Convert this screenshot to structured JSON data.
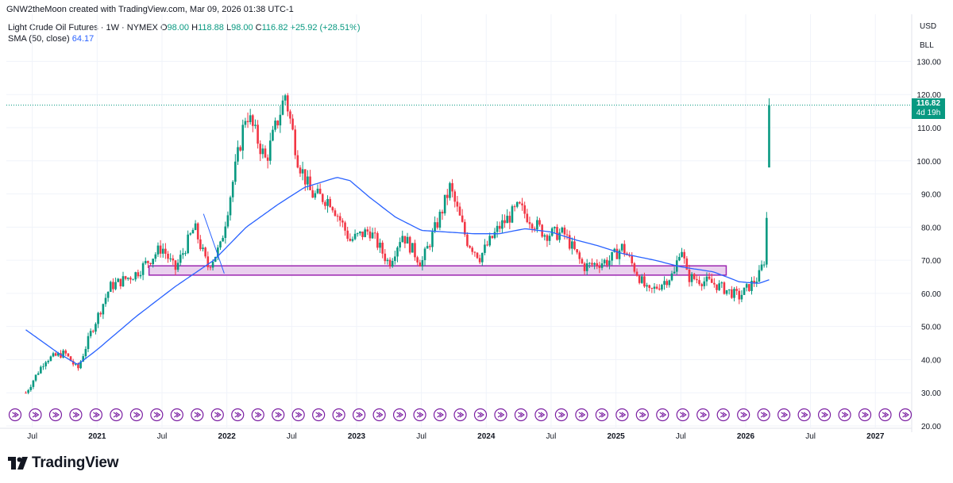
{
  "header": {
    "attribution": "GNW2theMoon created with TradingView.com, Mar 09, 2026 01:38 UTC-1"
  },
  "legend": {
    "instrument": "Light Crude Oil Futures · 1W · NYMEX",
    "o_label": "O",
    "o_value": "98.00",
    "h_label": "H",
    "h_value": "118.88",
    "l_label": "L",
    "l_value": "98.00",
    "c_label": "C",
    "c_value": "116.82",
    "change": "+25.92 (+28.51%)",
    "sma_label": "SMA (50, close)",
    "sma_value": "64.17"
  },
  "scale": {
    "currency": "USD",
    "unit": "BLL"
  },
  "price_tag": {
    "price": "116.82",
    "countdown": "4d 19h"
  },
  "branding": {
    "name": "TradingView"
  },
  "colors": {
    "up": "#089981",
    "down": "#f23645",
    "sma": "#2962ff",
    "zone_fill": "#e1bee7",
    "zone_border": "#9c27b0",
    "event_marker": "#7b1fa2"
  },
  "chart_data": {
    "type": "candlestick",
    "x_ticks": [
      "Jul",
      "2021",
      "Jul",
      "2022",
      "Jul",
      "2023",
      "Jul",
      "2024",
      "Jul",
      "2025",
      "Jul",
      "2026",
      "Jul",
      "2027"
    ],
    "y_ticks": [
      "20.00",
      "30.00",
      "40.00",
      "50.00",
      "60.00",
      "70.00",
      "80.00",
      "90.00",
      "100.00",
      "110.00",
      "120.00",
      "130.00"
    ],
    "ylim": [
      20,
      132
    ],
    "current_price": 116.82,
    "anchors": [
      [
        2020.45,
        30
      ],
      [
        2020.6,
        40
      ],
      [
        2020.75,
        42
      ],
      [
        2020.85,
        37
      ],
      [
        2020.95,
        48
      ],
      [
        2021.1,
        62
      ],
      [
        2021.3,
        66
      ],
      [
        2021.5,
        74
      ],
      [
        2021.6,
        67
      ],
      [
        2021.75,
        80
      ],
      [
        2021.85,
        68
      ],
      [
        2021.95,
        74
      ],
      [
        2022.15,
        115
      ],
      [
        2022.3,
        100
      ],
      [
        2022.45,
        120
      ],
      [
        2022.55,
        100
      ],
      [
        2022.65,
        90
      ],
      [
        2022.8,
        88
      ],
      [
        2022.95,
        76
      ],
      [
        2023.1,
        79
      ],
      [
        2023.25,
        69
      ],
      [
        2023.35,
        78
      ],
      [
        2023.5,
        69
      ],
      [
        2023.65,
        84
      ],
      [
        2023.72,
        92
      ],
      [
        2023.85,
        76
      ],
      [
        2023.95,
        71
      ],
      [
        2024.1,
        80
      ],
      [
        2024.25,
        86
      ],
      [
        2024.45,
        78
      ],
      [
        2024.6,
        78
      ],
      [
        2024.75,
        68
      ],
      [
        2024.95,
        70
      ],
      [
        2025.05,
        74
      ],
      [
        2025.25,
        60
      ],
      [
        2025.45,
        66
      ],
      [
        2025.5,
        75
      ],
      [
        2025.55,
        65
      ],
      [
        2025.75,
        63
      ],
      [
        2025.95,
        59
      ],
      [
        2026.1,
        65
      ],
      [
        2026.15,
        71
      ],
      [
        2026.17,
        91
      ],
      [
        2026.19,
        117
      ]
    ],
    "sma_anchors": [
      [
        2020.45,
        49
      ],
      [
        2020.7,
        42
      ],
      [
        2020.85,
        38.5
      ],
      [
        2021.0,
        43
      ],
      [
        2021.3,
        53
      ],
      [
        2021.6,
        62
      ],
      [
        2021.9,
        70
      ],
      [
        2022.15,
        80
      ],
      [
        2022.4,
        87
      ],
      [
        2022.6,
        92
      ],
      [
        2022.85,
        95
      ],
      [
        2022.95,
        94
      ],
      [
        2023.1,
        89
      ],
      [
        2023.3,
        83
      ],
      [
        2023.5,
        79
      ],
      [
        2023.7,
        78.5
      ],
      [
        2023.9,
        78
      ],
      [
        2024.1,
        78
      ],
      [
        2024.3,
        79.5
      ],
      [
        2024.5,
        78.5
      ],
      [
        2024.7,
        76
      ],
      [
        2024.85,
        74.5
      ],
      [
        2025.05,
        72
      ],
      [
        2025.3,
        70
      ],
      [
        2025.5,
        68
      ],
      [
        2025.75,
        66.5
      ],
      [
        2025.95,
        63.5
      ],
      [
        2026.1,
        63
      ],
      [
        2026.19,
        64.2
      ]
    ],
    "support_zone": {
      "x_start": 2021.4,
      "x_end": 2025.85,
      "y_low": 65.5,
      "y_high": 68.3
    },
    "trendline": {
      "x_start": 2021.82,
      "y_start": 84,
      "x_end": 2021.98,
      "y_end": 66
    },
    "event_markers": {
      "count": 45
    }
  }
}
